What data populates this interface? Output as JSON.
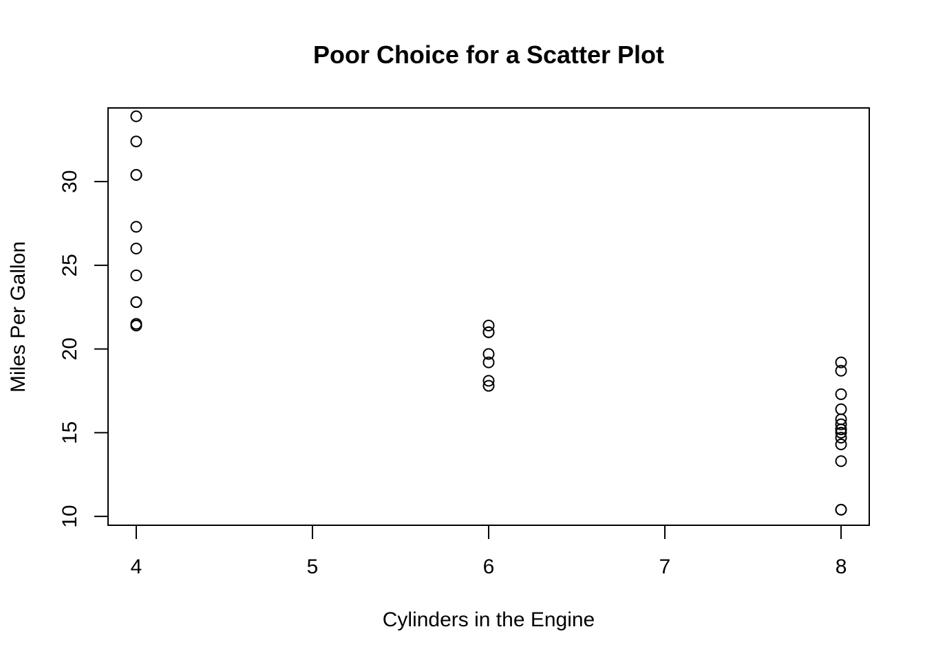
{
  "chart_data": {
    "type": "scatter",
    "title": "Poor Choice for a Scatter Plot",
    "xlabel": "Cylinders in the Engine",
    "ylabel": "Miles Per Gallon",
    "xlim": [
      3.84,
      8.16
    ],
    "ylim": [
      9.47,
      34.4
    ],
    "xticks": [
      4,
      5,
      6,
      7,
      8
    ],
    "yticks": [
      10,
      15,
      20,
      25,
      30
    ],
    "grid": false,
    "legend": "none",
    "point_color": "#000000",
    "series": [
      {
        "points": [
          {
            "x": 4,
            "y": 33.9
          },
          {
            "x": 4,
            "y": 32.4
          },
          {
            "x": 4,
            "y": 30.4
          },
          {
            "x": 4,
            "y": 30.4
          },
          {
            "x": 4,
            "y": 27.3
          },
          {
            "x": 4,
            "y": 26.0
          },
          {
            "x": 4,
            "y": 24.4
          },
          {
            "x": 4,
            "y": 22.8
          },
          {
            "x": 4,
            "y": 22.8
          },
          {
            "x": 4,
            "y": 21.5
          },
          {
            "x": 4,
            "y": 21.4
          },
          {
            "x": 6,
            "y": 21.4
          },
          {
            "x": 6,
            "y": 21.0
          },
          {
            "x": 6,
            "y": 21.0
          },
          {
            "x": 6,
            "y": 19.7
          },
          {
            "x": 6,
            "y": 19.2
          },
          {
            "x": 6,
            "y": 18.1
          },
          {
            "x": 6,
            "y": 17.8
          },
          {
            "x": 8,
            "y": 19.2
          },
          {
            "x": 8,
            "y": 18.7
          },
          {
            "x": 8,
            "y": 17.3
          },
          {
            "x": 8,
            "y": 16.4
          },
          {
            "x": 8,
            "y": 15.8
          },
          {
            "x": 8,
            "y": 15.5
          },
          {
            "x": 8,
            "y": 15.2
          },
          {
            "x": 8,
            "y": 15.2
          },
          {
            "x": 8,
            "y": 15.0
          },
          {
            "x": 8,
            "y": 14.7
          },
          {
            "x": 8,
            "y": 14.3
          },
          {
            "x": 8,
            "y": 13.3
          },
          {
            "x": 8,
            "y": 10.4
          },
          {
            "x": 8,
            "y": 10.4
          }
        ]
      }
    ]
  }
}
